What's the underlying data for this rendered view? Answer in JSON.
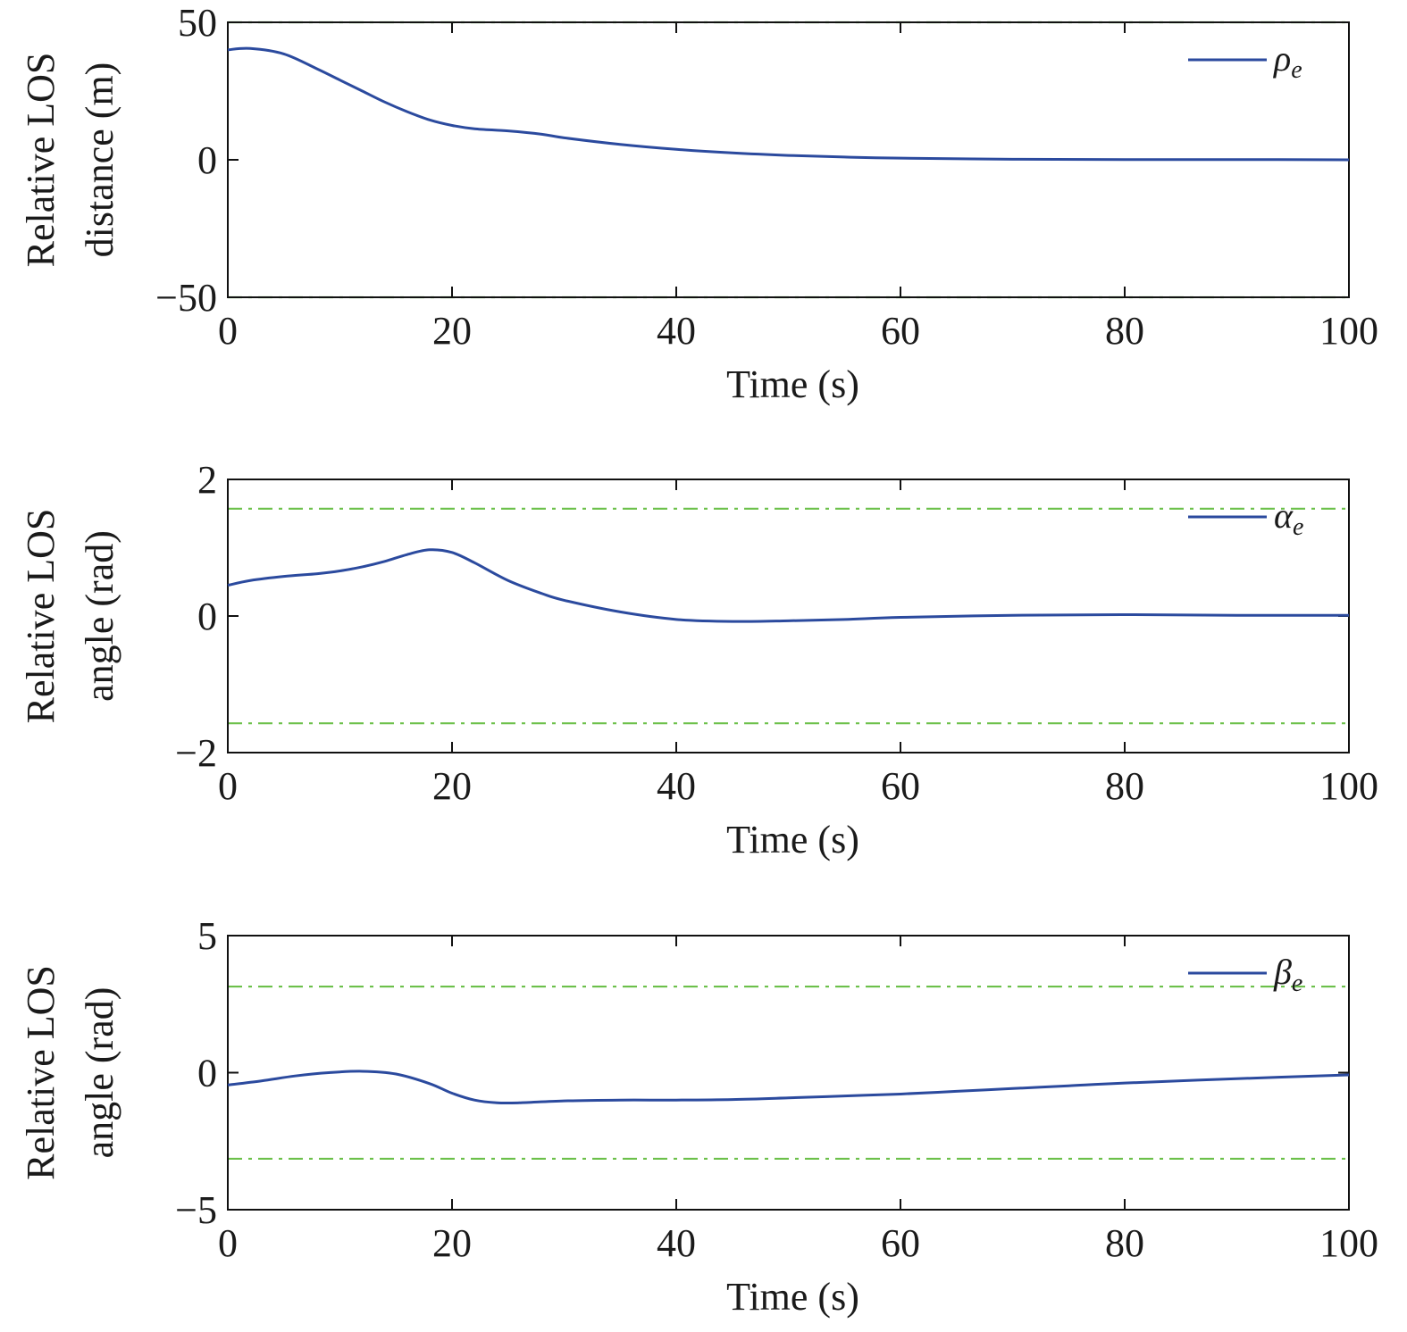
{
  "chart_data": [
    {
      "type": "line",
      "xlabel": "Time (s)",
      "ylabel_lines": [
        "Relative LOS",
        "distance (m)"
      ],
      "xlim": [
        0,
        100
      ],
      "ylim": [
        -50,
        50
      ],
      "xticks": [
        0,
        20,
        40,
        60,
        80,
        100
      ],
      "yticks": [
        -50,
        0,
        50
      ],
      "xtick_labels": [
        "0",
        "20",
        "40",
        "60",
        "80",
        "100"
      ],
      "ytick_labels": [
        "−50",
        "0",
        "50"
      ],
      "grid": false,
      "legend_position": "top-right",
      "legend": {
        "symbol": "ρ",
        "subscript": "e"
      },
      "series": [
        {
          "color": "#2b4a9e",
          "x": [
            0,
            2,
            5,
            8,
            10,
            12,
            14,
            16,
            18,
            20,
            22,
            25,
            28,
            30,
            35,
            40,
            45,
            50,
            55,
            60,
            70,
            80,
            90,
            100
          ],
          "y": [
            40,
            40.5,
            38.5,
            33,
            29,
            25,
            21,
            17.5,
            14.5,
            12.5,
            11.3,
            10.5,
            9.3,
            8,
            5.6,
            3.8,
            2.5,
            1.6,
            1,
            0.6,
            0.2,
            0.1,
            0.1,
            0
          ]
        }
      ],
      "bounds": {
        "color": "#6cc04a",
        "upper": 50,
        "lower": -50,
        "style": "dash-dot",
        "with_black": true
      }
    },
    {
      "type": "line",
      "xlabel": "Time (s)",
      "ylabel_lines": [
        "Relative LOS",
        "angle (rad)"
      ],
      "xlim": [
        0,
        100
      ],
      "ylim": [
        -2,
        2
      ],
      "xticks": [
        0,
        20,
        40,
        60,
        80,
        100
      ],
      "yticks": [
        -2,
        0,
        2
      ],
      "xtick_labels": [
        "0",
        "20",
        "40",
        "60",
        "80",
        "100"
      ],
      "ytick_labels": [
        "−2",
        "0",
        "2"
      ],
      "grid": false,
      "legend_position": "top-right",
      "legend": {
        "symbol": "α",
        "subscript": "e"
      },
      "series": [
        {
          "color": "#2b4a9e",
          "x": [
            0,
            2,
            5,
            8,
            10,
            12,
            14,
            16,
            18,
            20,
            22,
            25,
            28,
            30,
            35,
            40,
            45,
            50,
            55,
            60,
            70,
            80,
            90,
            100
          ],
          "y": [
            0.45,
            0.52,
            0.58,
            0.62,
            0.66,
            0.72,
            0.8,
            0.9,
            0.97,
            0.93,
            0.78,
            0.52,
            0.33,
            0.23,
            0.06,
            -0.05,
            -0.08,
            -0.07,
            -0.05,
            -0.02,
            0.01,
            0.02,
            0.01,
            0.01
          ]
        }
      ],
      "bounds": {
        "color": "#6cc04a",
        "upper": 1.5708,
        "lower": -1.5708,
        "style": "dash-dot"
      }
    },
    {
      "type": "line",
      "xlabel": "Time (s)",
      "ylabel_lines": [
        "Relative LOS",
        "angle (rad)"
      ],
      "xlim": [
        0,
        100
      ],
      "ylim": [
        -5,
        5
      ],
      "xticks": [
        0,
        20,
        40,
        60,
        80,
        100
      ],
      "yticks": [
        -5,
        0,
        5
      ],
      "xtick_labels": [
        "0",
        "20",
        "40",
        "60",
        "80",
        "100"
      ],
      "ytick_labels": [
        "−5",
        "0",
        "5"
      ],
      "grid": false,
      "legend_position": "top-right",
      "legend": {
        "symbol": "β",
        "subscript": "e"
      },
      "series": [
        {
          "color": "#2b4a9e",
          "x": [
            0,
            3,
            6,
            9,
            12,
            15,
            18,
            20,
            22,
            24,
            26,
            30,
            35,
            40,
            45,
            50,
            55,
            60,
            65,
            70,
            75,
            80,
            90,
            100
          ],
          "y": [
            -0.45,
            -0.3,
            -0.12,
            0,
            0.05,
            -0.05,
            -0.4,
            -0.75,
            -1.0,
            -1.1,
            -1.1,
            -1.03,
            -1.0,
            -1.0,
            -0.98,
            -0.92,
            -0.85,
            -0.78,
            -0.68,
            -0.58,
            -0.48,
            -0.38,
            -0.22,
            -0.08
          ]
        }
      ],
      "bounds": {
        "color": "#6cc04a",
        "upper": 3.1416,
        "lower": -3.1416,
        "style": "dash-dot"
      }
    }
  ]
}
